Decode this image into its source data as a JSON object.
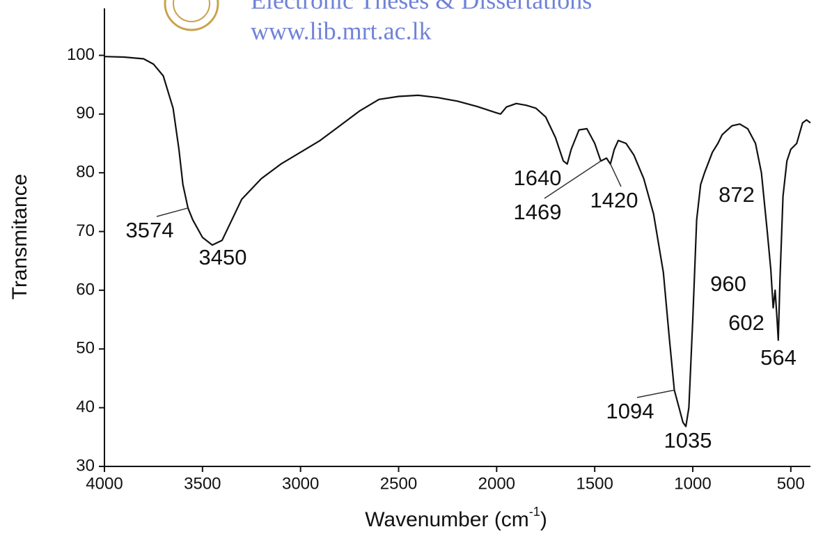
{
  "watermark": {
    "line1": "Electronic Theses & Dissertations",
    "line2": "www.lib.mrt.ac.lk"
  },
  "chart_data": {
    "type": "line",
    "x_label": {
      "text": "Wavenumber (cm",
      "sup": "-1",
      "end": ")"
    },
    "y_label": "Transmitance",
    "xlim": [
      4000,
      400
    ],
    "ylim": [
      30,
      108
    ],
    "xticks": [
      4000,
      3500,
      3000,
      2500,
      2000,
      1500,
      1000,
      500
    ],
    "yticks": [
      30,
      40,
      50,
      60,
      70,
      80,
      90,
      100
    ],
    "series": [
      {
        "color": "#111111",
        "x": [
          4000,
          3900,
          3800,
          3750,
          3700,
          3650,
          3620,
          3600,
          3574,
          3550,
          3500,
          3450,
          3400,
          3350,
          3300,
          3200,
          3100,
          3000,
          2900,
          2800,
          2700,
          2600,
          2500,
          2400,
          2300,
          2200,
          2100,
          2000,
          1980,
          1950,
          1900,
          1850,
          1800,
          1750,
          1700,
          1660,
          1640,
          1620,
          1580,
          1540,
          1500,
          1469,
          1440,
          1420,
          1400,
          1380,
          1340,
          1300,
          1250,
          1200,
          1150,
          1120,
          1094,
          1070,
          1050,
          1035,
          1020,
          1000,
          980,
          960,
          940,
          900,
          872,
          850,
          800,
          760,
          720,
          680,
          650,
          620,
          602,
          590,
          580,
          570,
          564,
          555,
          540,
          520,
          500,
          470,
          440,
          420,
          400
        ],
        "values": [
          99.8,
          99.7,
          99.4,
          98.5,
          96.5,
          91,
          84,
          78,
          74,
          72,
          69,
          67.7,
          68.5,
          72,
          75.5,
          79,
          81.5,
          83.5,
          85.5,
          88,
          90.5,
          92.5,
          93,
          93.2,
          92.8,
          92.2,
          91.3,
          90.2,
          90,
          91.2,
          91.8,
          91.5,
          91,
          89.5,
          86,
          82,
          81.5,
          84,
          87.3,
          87.5,
          85,
          82,
          82.5,
          81.5,
          84,
          85.5,
          85,
          83,
          79,
          73,
          63,
          52,
          43,
          40,
          37.5,
          36.8,
          40,
          55,
          72,
          78,
          80,
          83.5,
          85,
          86.5,
          88,
          88.3,
          87.5,
          85,
          80,
          70,
          63.5,
          57,
          60,
          55,
          51.5,
          62,
          76,
          82,
          84,
          85,
          88.5,
          89,
          88.5
        ]
      }
    ],
    "annotations": [
      {
        "label": "3574",
        "x": 3574,
        "y": 74
      },
      {
        "label": "3450",
        "x": 3450,
        "y": 67.7
      },
      {
        "label": "1640",
        "x": 1640,
        "y": 81.5
      },
      {
        "label": "1469",
        "x": 1469,
        "y": 82
      },
      {
        "label": "1420",
        "x": 1420,
        "y": 81.5
      },
      {
        "label": "872",
        "x": 872,
        "y": 85
      },
      {
        "label": "960",
        "x": 960,
        "y": 78
      },
      {
        "label": "602",
        "x": 602,
        "y": 63.5
      },
      {
        "label": "564",
        "x": 564,
        "y": 51.5
      },
      {
        "label": "1094",
        "x": 1094,
        "y": 43
      },
      {
        "label": "1035",
        "x": 1035,
        "y": 36.8
      }
    ]
  }
}
